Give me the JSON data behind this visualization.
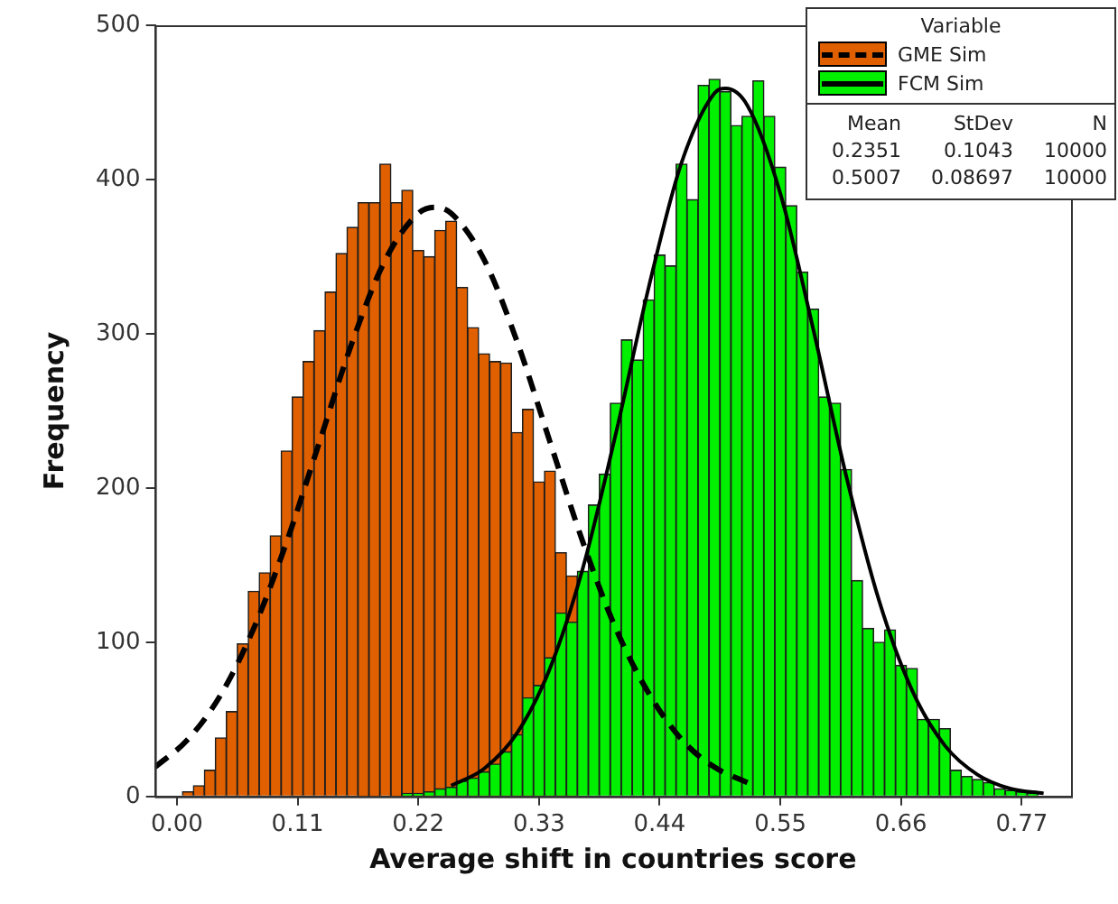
{
  "chart_data": {
    "type": "histogram",
    "xlabel": "Average shift in countries score",
    "ylabel": "Frequency",
    "legend_title": "Variable",
    "legend": "top right",
    "bins": [
      0.005,
      0.015,
      0.025,
      0.035,
      0.045,
      0.055,
      0.065,
      0.075,
      0.085,
      0.095,
      0.105,
      0.115,
      0.125,
      0.135,
      0.145,
      0.155,
      0.165,
      0.175,
      0.185,
      0.195,
      0.205,
      0.215,
      0.225,
      0.235,
      0.245,
      0.255,
      0.265,
      0.275,
      0.285,
      0.295,
      0.305,
      0.315,
      0.325,
      0.335,
      0.345,
      0.355,
      0.365,
      0.375,
      0.385,
      0.395,
      0.405,
      0.415,
      0.425,
      0.435,
      0.445,
      0.455,
      0.465,
      0.475,
      0.485,
      0.495,
      0.505,
      0.515,
      0.525,
      0.535,
      0.545,
      0.555,
      0.565,
      0.575,
      0.585,
      0.595,
      0.605,
      0.615,
      0.625,
      0.635,
      0.645,
      0.655,
      0.665,
      0.675,
      0.685,
      0.695,
      0.705,
      0.715,
      0.725,
      0.735,
      0.745,
      0.755,
      0.765,
      0.775,
      0.785,
      0.795
    ],
    "series": [
      {
        "name": "GME Sim",
        "color": "#e06000",
        "values": [
          3,
          7,
          17,
          38,
          55,
          99,
          133,
          145,
          169,
          224,
          259,
          282,
          302,
          327,
          352,
          369,
          385,
          385,
          410,
          385,
          393,
          354,
          350,
          367,
          373,
          330,
          304,
          287,
          282,
          281,
          236,
          251,
          204,
          211,
          158,
          143,
          null,
          null,
          null,
          null,
          null,
          null,
          null,
          null,
          null,
          null,
          null,
          null,
          null,
          null,
          null,
          null,
          null,
          null,
          null,
          null,
          null,
          null,
          null,
          null,
          null,
          null,
          null,
          null,
          null,
          null,
          null,
          null,
          null,
          null,
          null,
          null,
          null,
          null,
          null,
          null,
          null,
          null,
          null
        ]
      },
      {
        "name": "FCM Sim",
        "color": "#00f000",
        "values": [
          null,
          null,
          null,
          null,
          null,
          null,
          null,
          null,
          null,
          null,
          null,
          null,
          null,
          null,
          null,
          null,
          null,
          null,
          null,
          null,
          2,
          2,
          3,
          5,
          6,
          10,
          12,
          16,
          21,
          29,
          40,
          64,
          72,
          90,
          119,
          113,
          146,
          189,
          209,
          255,
          296,
          283,
          322,
          351,
          344,
          410,
          387,
          461,
          465,
          457,
          435,
          441,
          464,
          441,
          408,
          383,
          340,
          316,
          259,
          255,
          212,
          140,
          109,
          100,
          108,
          85,
          83,
          50,
          50,
          44,
          17,
          13,
          11,
          9,
          5,
          4,
          3,
          2,
          null
        ]
      },
      {
        "type": "line",
        "color": "#000000",
        "line_style": "dashed",
        "x": [
          -0.02,
          0.01,
          0.04,
          0.07,
          0.1,
          0.13,
          0.16,
          0.19,
          0.22,
          0.235,
          0.25,
          0.28,
          0.31,
          0.34,
          0.37,
          0.4,
          0.43,
          0.46,
          0.49,
          0.52
        ],
        "values": [
          19,
          37,
          66,
          109,
          165,
          230,
          295,
          348,
          378,
          382,
          378,
          348,
          295,
          230,
          165,
          109,
          67,
          37,
          19,
          9
        ]
      },
      {
        "type": "line",
        "color": "#000000",
        "line_style": "solid",
        "x": [
          0.25,
          0.28,
          0.31,
          0.34,
          0.37,
          0.4,
          0.43,
          0.46,
          0.49,
          0.5,
          0.52,
          0.55,
          0.58,
          0.61,
          0.64,
          0.67,
          0.7,
          0.73,
          0.76,
          0.79
        ],
        "values": [
          7,
          18,
          41,
          83,
          148,
          235,
          330,
          411,
          456,
          459,
          448,
          391,
          303,
          208,
          127,
          69,
          33,
          14,
          5,
          2
        ]
      }
    ],
    "xlim": [
      -0.02,
      0.815
    ],
    "ylim": [
      0,
      500
    ],
    "xticks": [
      {
        "value": 0,
        "label": "0.00"
      },
      0.11,
      0.22,
      0.33,
      0.44,
      0.55,
      0.66,
      0.77
    ],
    "yticks": [
      0,
      100,
      200,
      300,
      400,
      500
    ],
    "grid": false,
    "marker": "none",
    "annotations": [
      "Mean",
      "StDev",
      "N",
      "0.2351",
      "0.1043",
      "10000",
      "0.5007",
      "0.08697",
      "10000"
    ]
  }
}
